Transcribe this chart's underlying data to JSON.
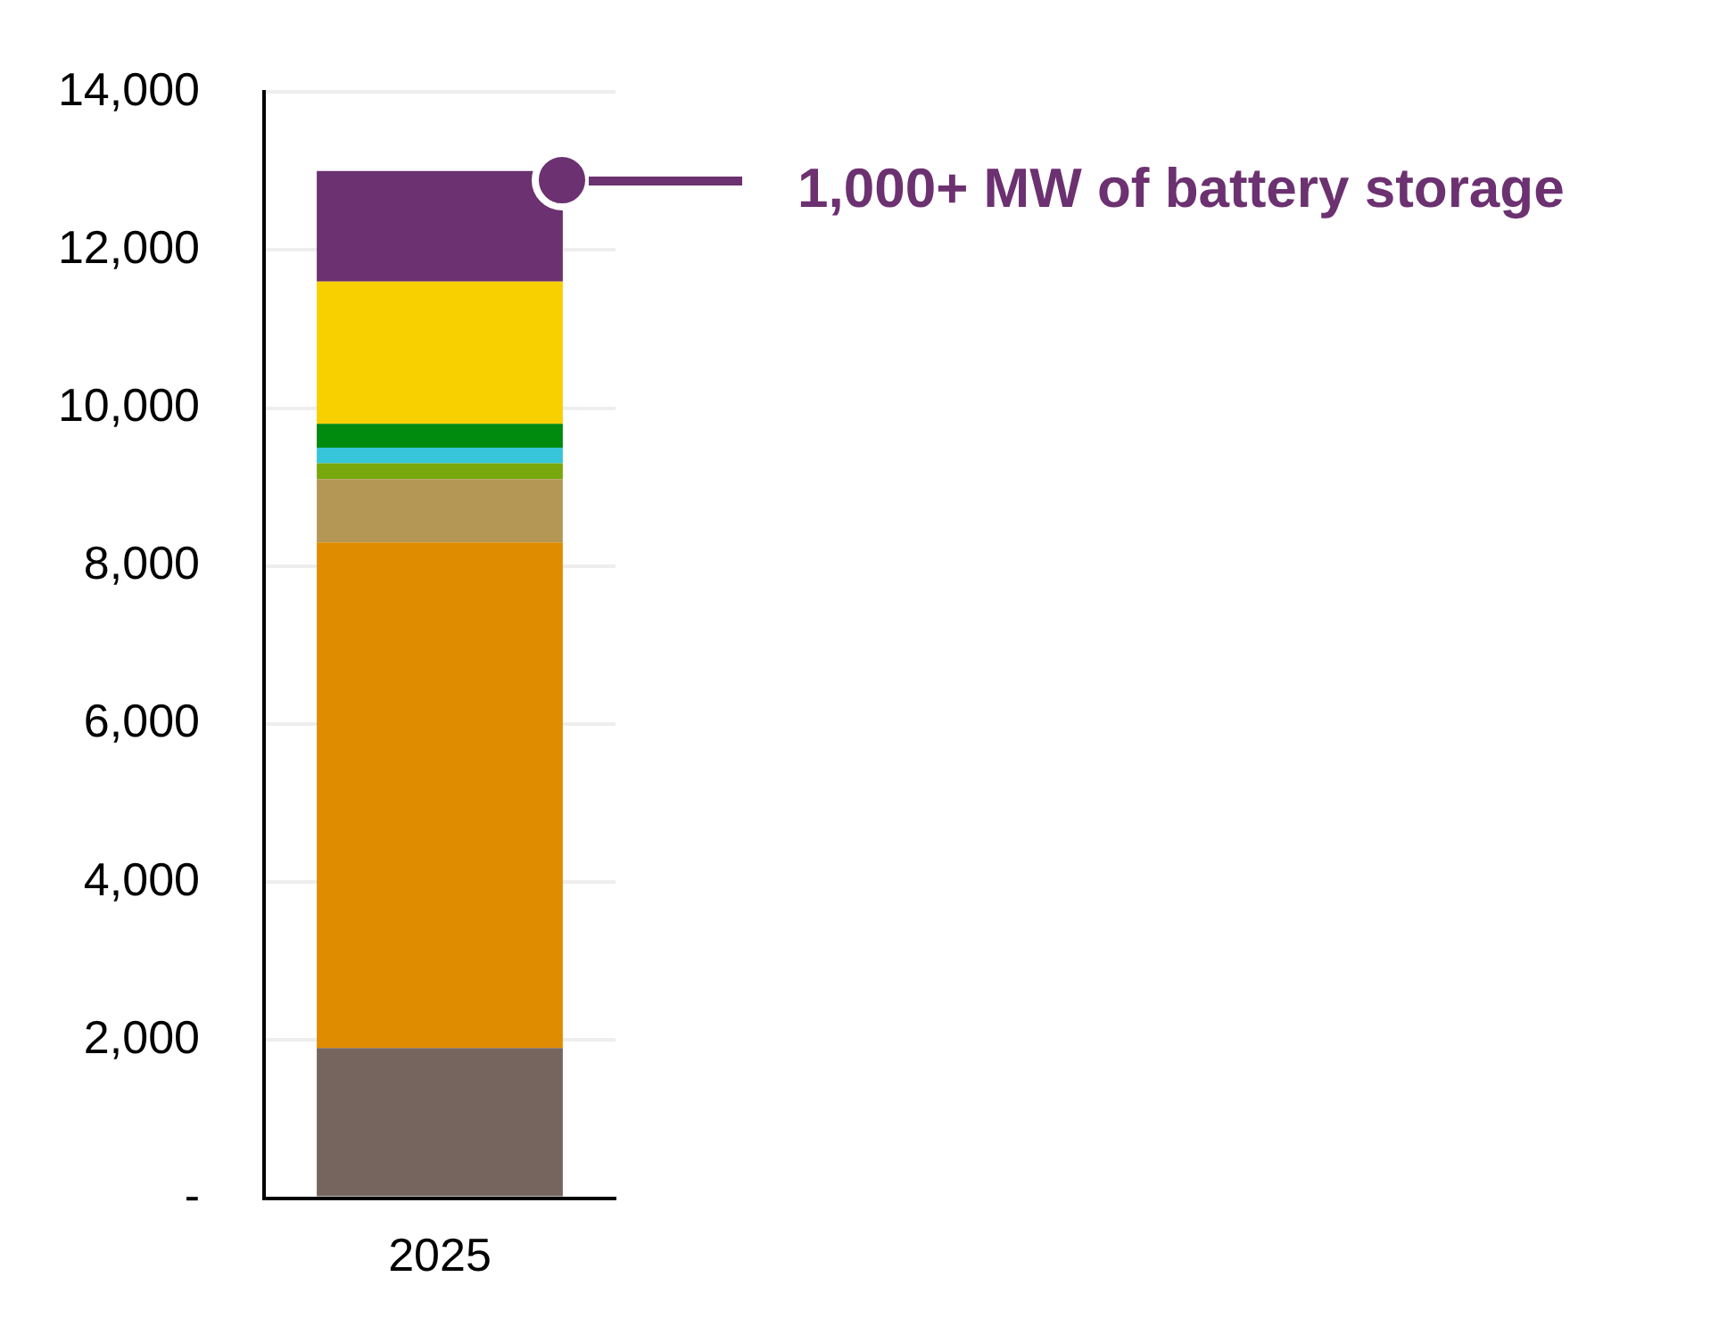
{
  "chart_data": {
    "type": "bar",
    "stacked": true,
    "categories": [
      "2025"
    ],
    "series": [
      {
        "color": "#75655e",
        "values": [
          1900
        ]
      },
      {
        "color": "#e08c00",
        "values": [
          6400
        ]
      },
      {
        "color": "#b59755",
        "values": [
          800
        ]
      },
      {
        "color": "#78a80b",
        "values": [
          200
        ]
      },
      {
        "color": "#36c5d9",
        "values": [
          200
        ]
      },
      {
        "color": "#008a0e",
        "values": [
          300
        ]
      },
      {
        "color": "#f8d000",
        "values": [
          1800
        ]
      },
      {
        "color": "#6c3170",
        "values": [
          1400
        ]
      }
    ],
    "ylim": [
      0,
      14000
    ],
    "yticks": [
      {
        "value": 0,
        "label": "-"
      },
      {
        "value": 2000,
        "label": "2,000"
      },
      {
        "value": 4000,
        "label": "4,000"
      },
      {
        "value": 6000,
        "label": "6,000"
      },
      {
        "value": 8000,
        "label": "8,000"
      },
      {
        "value": 10000,
        "label": "10,000"
      },
      {
        "value": 12000,
        "label": "12,000"
      },
      {
        "value": 14000,
        "label": "14,000"
      }
    ],
    "grid": "y",
    "legend": false,
    "annotations": [
      "1,000+ MW of battery storage"
    ]
  }
}
